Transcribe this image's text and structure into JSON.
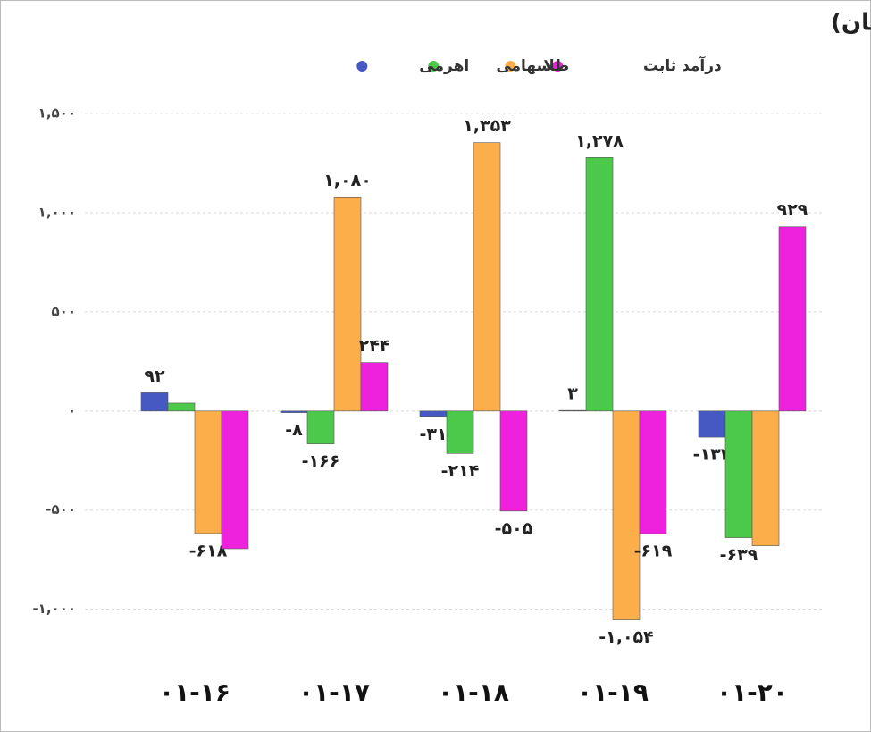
{
  "chart_data": {
    "type": "bar",
    "title": "ورود و خروج پول حقیقی به صندوق ها (میلیارد تومان)",
    "categories": [
      "۰۱-۱۶",
      "۰۱-۱۷",
      "۰۱-۱۸",
      "۰۱-۱۹",
      "۰۱-۲۰"
    ],
    "series": [
      {
        "name": "اهرمی",
        "color": "#4659c2",
        "values": [
          92,
          -8,
          -31,
          3,
          -132
        ],
        "value_labels": [
          "۹۲",
          "-۸",
          "-۳۱",
          "۳",
          "-۱۳۲"
        ]
      },
      {
        "name": "سهامی",
        "color": "#4cc94a",
        "values": [
          40,
          -166,
          -214,
          1278,
          -639
        ],
        "value_labels": [
          null,
          "-۱۶۶",
          "-۲۱۴",
          "۱,۲۷۸",
          "-۶۳۹"
        ]
      },
      {
        "name": "طلا",
        "color": "#fbae4a",
        "values": [
          -618,
          1080,
          1353,
          -1054,
          -680
        ],
        "value_labels": [
          "-۶۱۸",
          "۱,۰۸۰",
          "۱,۳۵۳",
          "-۱,۰۵۴",
          null
        ]
      },
      {
        "name": "درآمد ثابت",
        "color": "#ee22dd",
        "values": [
          -695,
          244,
          -505,
          -619,
          929
        ],
        "value_labels": [
          null,
          "۲۴۴",
          "-۵۰۵",
          "-۶۱۹",
          "۹۲۹"
        ]
      }
    ],
    "ylim": [
      -1200,
      1550
    ],
    "yticks": [
      {
        "value": -1000,
        "label": "-۱,۰۰۰"
      },
      {
        "value": -500,
        "label": "-۵۰۰"
      },
      {
        "value": 0,
        "label": "۰"
      },
      {
        "value": 500,
        "label": "۵۰۰"
      },
      {
        "value": 1000,
        "label": "۱,۰۰۰"
      },
      {
        "value": 1500,
        "label": "۱,۵۰۰"
      }
    ],
    "grid": true
  }
}
